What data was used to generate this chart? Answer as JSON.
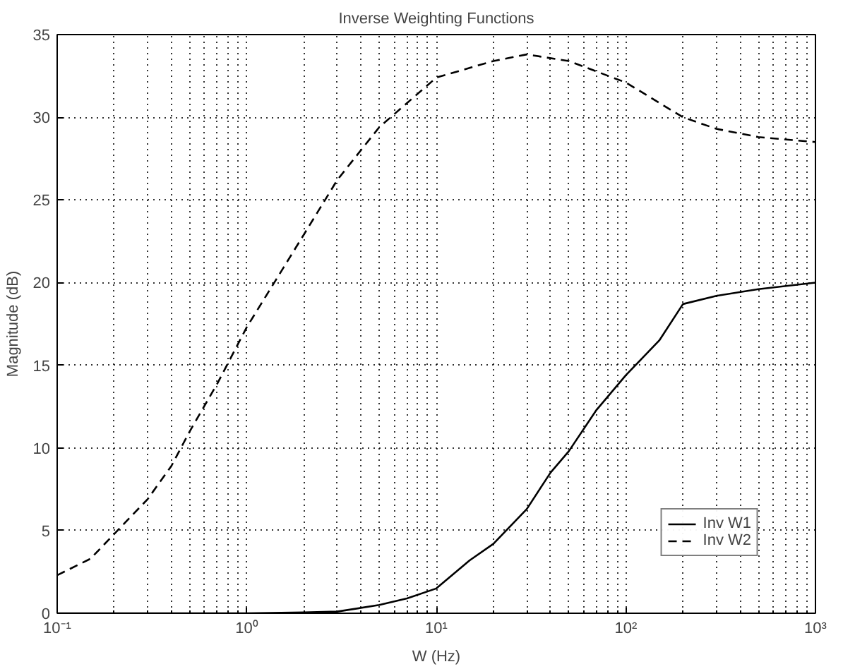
{
  "chart_data": {
    "type": "line",
    "title": "Inverse Weighting Functions",
    "xlabel": "W (Hz)",
    "ylabel": "Magnitude (dB)",
    "log": "x",
    "grid": true,
    "legend": "bottom right",
    "xlim": [
      0.1,
      1000
    ],
    "ylim": [
      0,
      35
    ],
    "xticks": [
      {
        "value": 0.1,
        "label": "10⁻¹"
      },
      {
        "value": 1,
        "label": "10⁰"
      },
      {
        "value": 10,
        "label": "10¹"
      },
      {
        "value": 100,
        "label": "10²"
      },
      {
        "value": 1000,
        "label": "10³"
      }
    ],
    "yticks": [
      0,
      5,
      10,
      15,
      20,
      25,
      30,
      35
    ],
    "series": [
      {
        "name": "Inv W1",
        "color": "#000000",
        "line_style": "solid",
        "x": [
          0.1,
          1,
          2,
          3,
          5,
          7,
          10,
          15,
          20,
          30,
          40,
          50,
          70,
          100,
          150,
          200,
          300,
          500,
          1000
        ],
        "values": [
          0,
          0,
          0.05,
          0.1,
          0.5,
          0.9,
          1.5,
          3.2,
          4.2,
          6.3,
          8.5,
          9.8,
          12.3,
          14.4,
          16.5,
          18.7,
          19.2,
          19.6,
          20
        ]
      },
      {
        "name": "Inv W2",
        "color": "#000000",
        "line_style": "dashed",
        "x": [
          0.1,
          0.15,
          0.2,
          0.3,
          0.4,
          0.5,
          0.7,
          1,
          2,
          3,
          5,
          10,
          20,
          30,
          50,
          100,
          200,
          300,
          500,
          1000
        ],
        "values": [
          2.3,
          3.3,
          4.8,
          6.9,
          8.9,
          11,
          13.9,
          17.3,
          22.9,
          26.2,
          29.4,
          32.4,
          33.4,
          33.8,
          33.4,
          32.1,
          30,
          29.3,
          28.8,
          28.5
        ]
      }
    ]
  }
}
